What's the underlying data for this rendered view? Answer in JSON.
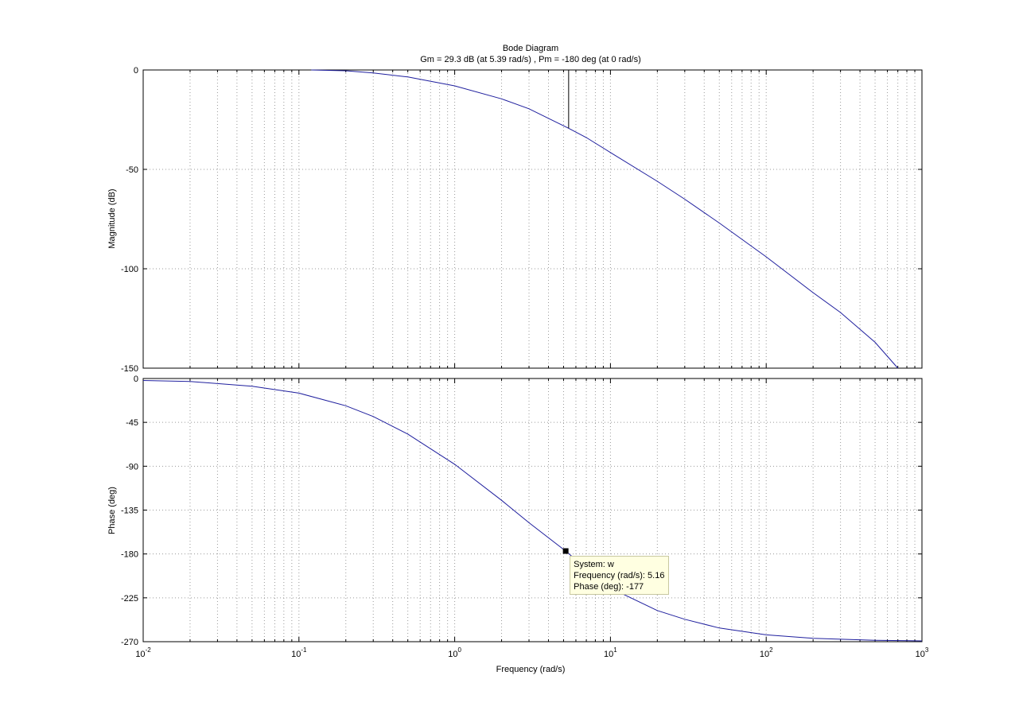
{
  "chart_data": {
    "type": "line",
    "title": "Bode Diagram",
    "subtitle": "Gm = 29.3 dB (at 5.39 rad/s) ,  Pm = -180 deg (at 0 rad/s)",
    "xlabel": "Frequency  (rad/s)",
    "xscale": "log",
    "xlim": [
      0.01,
      1000
    ],
    "x_ticks": [
      {
        "base": "10",
        "exp": "-2"
      },
      {
        "base": "10",
        "exp": "-1"
      },
      {
        "base": "10",
        "exp": "0"
      },
      {
        "base": "10",
        "exp": "1"
      },
      {
        "base": "10",
        "exp": "2"
      },
      {
        "base": "10",
        "exp": "3"
      }
    ],
    "grid": true,
    "line_color": "#1f1f9e",
    "magnitude": {
      "ylabel": "Magnitude (dB)",
      "ylim": [
        -150,
        0
      ],
      "yticks": [
        0,
        -50,
        -100,
        -150
      ],
      "x": [
        0.12,
        0.2,
        0.3,
        0.5,
        1,
        2,
        3,
        5.39,
        7,
        10,
        20,
        30,
        50,
        100,
        200,
        300,
        500,
        700
      ],
      "y": [
        0,
        -0.4,
        -1.5,
        -3.5,
        -8,
        -14.5,
        -19.5,
        -29.3,
        -34,
        -41.5,
        -56,
        -65,
        -77,
        -94,
        -112,
        -122,
        -137,
        -150
      ]
    },
    "gain_margin_marker": {
      "x": 5.39,
      "y_from": 0,
      "y_to": -29.3
    },
    "phase": {
      "ylabel": "Phase (deg)",
      "ylim": [
        -270,
        0
      ],
      "yticks": [
        0,
        -45,
        -90,
        -135,
        -180,
        -225,
        -270
      ],
      "x": [
        0.01,
        0.02,
        0.05,
        0.1,
        0.2,
        0.3,
        0.5,
        1,
        2,
        3,
        5.16,
        7,
        10,
        20,
        30,
        50,
        100,
        200,
        300,
        500,
        1000
      ],
      "y": [
        -2,
        -3,
        -8,
        -15,
        -28,
        -39,
        -57,
        -88,
        -125,
        -148,
        -177,
        -195,
        -215,
        -238,
        -247,
        -256,
        -263,
        -266.5,
        -267.5,
        -268.5,
        -269.2
      ]
    },
    "datatip": {
      "x": 5.16,
      "y": -177,
      "lines": [
        "System: w",
        "Frequency (rad/s): 5.16",
        "Phase (deg): -177"
      ]
    }
  }
}
